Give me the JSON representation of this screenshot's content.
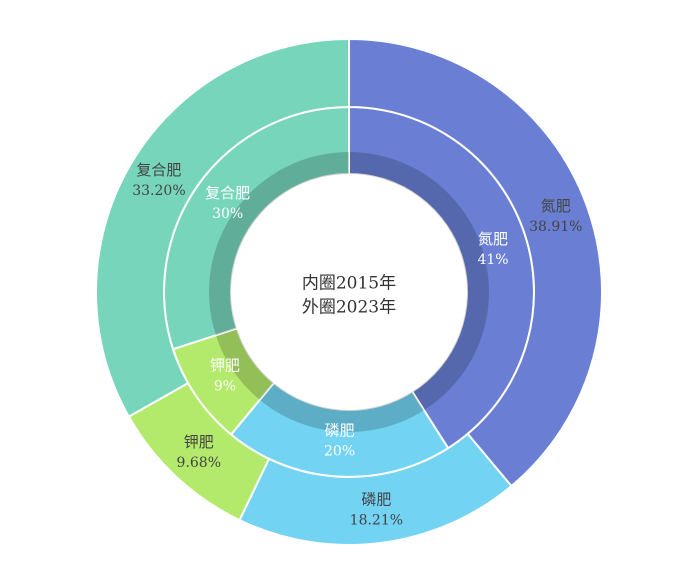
{
  "chart_data": {
    "type": "nested-donut",
    "center_text": [
      "内圈2015年",
      "外圈2023年"
    ],
    "categories": [
      "氮肥",
      "磷肥",
      "钾肥",
      "复合肥"
    ],
    "colors": [
      "#6a7fd3",
      "#72d3f2",
      "#b3ea6b",
      "#76d5bb"
    ],
    "series": [
      {
        "values": [
          41,
          20,
          9,
          30
        ],
        "value_labels": [
          "41%",
          "20%",
          "9%",
          "30%"
        ]
      },
      {
        "values": [
          38.91,
          18.21,
          9.68,
          33.2
        ],
        "value_labels": [
          "38.91%",
          "18.21%",
          "9.68%",
          "33.20%"
        ]
      }
    ]
  }
}
